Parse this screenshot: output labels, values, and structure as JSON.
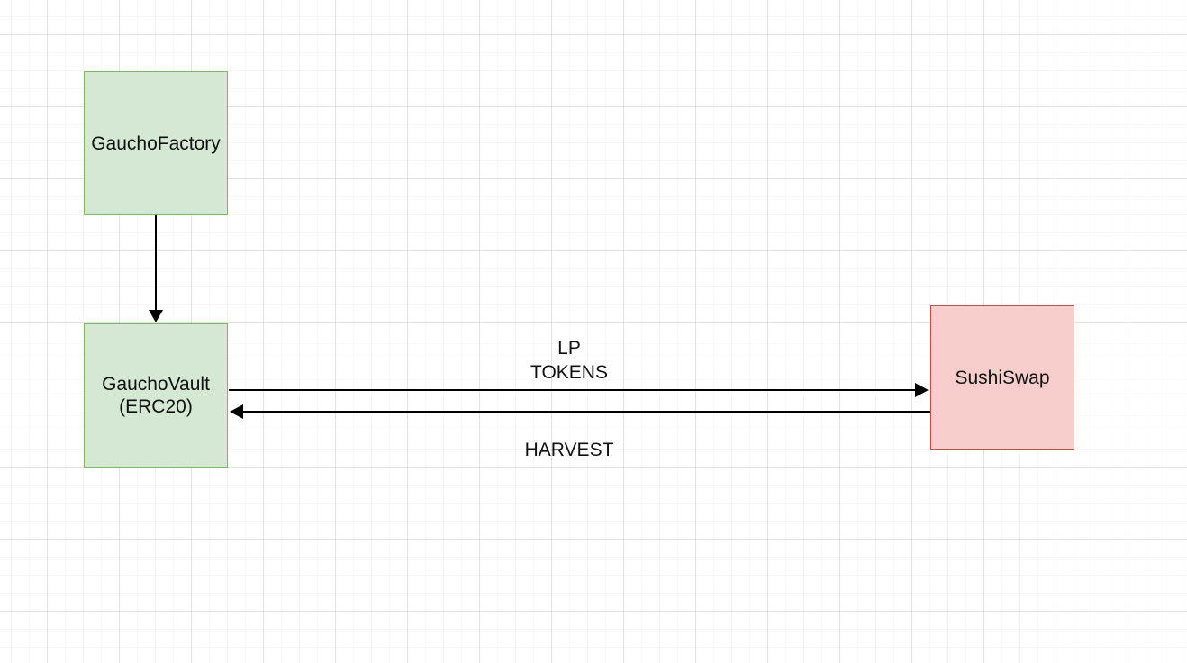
{
  "diagram": {
    "nodes": {
      "factory": {
        "label": "GauchoFactory",
        "fill": "#d5e8d4",
        "stroke": "#82b366"
      },
      "vault": {
        "label": "GauchoVault\n(ERC20)",
        "fill": "#d5e8d4",
        "stroke": "#82b366"
      },
      "sushi": {
        "label": "SushiSwap",
        "fill": "#f8cecc",
        "stroke": "#b85450"
      }
    },
    "edges": [
      {
        "from": "GauchoFactory",
        "to": "GauchoVault",
        "label": ""
      },
      {
        "from": "GauchoVault",
        "to": "SushiSwap",
        "label": "LP\nTOKENS"
      },
      {
        "from": "SushiSwap",
        "to": "GauchoVault",
        "label": "HARVEST"
      }
    ],
    "edge_labels": {
      "lp_tokens": "LP\nTOKENS",
      "harvest": "HARVEST"
    }
  }
}
